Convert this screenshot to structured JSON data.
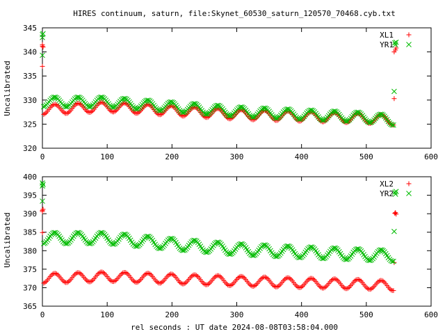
{
  "chart_data": {
    "title": "HIRES continuum, saturn, file:Skynet_60530_saturn_120570_70468.cyb.txt",
    "xlabel": "rel seconds : UT date 2024-08-08T03:58:04.000",
    "panels": [
      {
        "type": "scatter",
        "ylabel": "Uncalibrated",
        "xlim": [
          0,
          600
        ],
        "ylim": [
          320,
          345
        ],
        "xticks": [
          "0",
          "100",
          "200",
          "300",
          "400",
          "500",
          "600"
        ],
        "yticks": [
          "320",
          "325",
          "330",
          "335",
          "340",
          "345"
        ],
        "legend_position": "top-right",
        "series": [
          {
            "name": "XL1",
            "color": "#ff0000",
            "marker": "plus",
            "baseline": [
              [
                0,
                328.0
              ],
              [
                100,
                328.6
              ],
              [
                200,
                327.8
              ],
              [
                300,
                327.0
              ],
              [
                400,
                326.6
              ],
              [
                500,
                326.2
              ],
              [
                540,
                325.8
              ]
            ],
            "amplitude": 1.0,
            "period": 36,
            "x_range": [
              2,
              542
            ],
            "step": 2,
            "outliers": [
              [
                0,
                341.5
              ],
              [
                0,
                341.2
              ],
              [
                0,
                337.0
              ],
              [
                1,
                341.0
              ],
              [
                543,
                330.3
              ],
              [
                543,
                340.0
              ],
              [
                545,
                340.4
              ],
              [
                546,
                340.8
              ]
            ]
          },
          {
            "name": "YR1",
            "color": "#00bb00",
            "marker": "cross",
            "baseline": [
              [
                0,
                329.6
              ],
              [
                100,
                329.6
              ],
              [
                200,
                328.6
              ],
              [
                300,
                327.6
              ],
              [
                400,
                327.0
              ],
              [
                500,
                326.4
              ],
              [
                540,
                325.8
              ]
            ],
            "amplitude": 1.0,
            "period": 36,
            "x_range": [
              2,
              542
            ],
            "step": 2,
            "outliers": [
              [
                0,
                343.6
              ],
              [
                0,
                343.0
              ],
              [
                0,
                339.3
              ],
              [
                1,
                343.8
              ],
              [
                543,
                331.8
              ],
              [
                544,
                341.9
              ],
              [
                545,
                341.5
              ],
              [
                546,
                342.0
              ]
            ]
          }
        ]
      },
      {
        "type": "scatter",
        "ylabel": "Uncalibrated",
        "xlim": [
          0,
          600
        ],
        "ylim": [
          365,
          400
        ],
        "xticks": [
          "0",
          "100",
          "200",
          "300",
          "400",
          "500",
          "600"
        ],
        "yticks": [
          "365",
          "370",
          "375",
          "380",
          "385",
          "390",
          "395",
          "400"
        ],
        "legend_position": "top-right",
        "series": [
          {
            "name": "XL2",
            "color": "#ff0000",
            "marker": "plus",
            "baseline": [
              [
                0,
                372.5
              ],
              [
                100,
                373.0
              ],
              [
                200,
                372.4
              ],
              [
                300,
                371.8
              ],
              [
                400,
                371.3
              ],
              [
                500,
                370.9
              ],
              [
                540,
                370.5
              ]
            ],
            "amplitude": 1.3,
            "period": 36,
            "x_range": [
              2,
              542
            ],
            "step": 2,
            "outliers": [
              [
                0,
                390.6
              ],
              [
                0,
                390.9
              ],
              [
                0,
                384.9
              ],
              [
                1,
                391.2
              ],
              [
                543,
                376.8
              ],
              [
                544,
                390.1
              ],
              [
                545,
                390.3
              ],
              [
                546,
                389.9
              ]
            ]
          },
          {
            "name": "YR2",
            "color": "#00bb00",
            "marker": "cross",
            "baseline": [
              [
                0,
                383.4
              ],
              [
                100,
                383.4
              ],
              [
                200,
                381.8
              ],
              [
                300,
                380.4
              ],
              [
                400,
                379.6
              ],
              [
                500,
                378.9
              ],
              [
                540,
                378.6
              ]
            ],
            "amplitude": 1.5,
            "period": 36,
            "x_range": [
              2,
              542
            ],
            "step": 2,
            "outliers": [
              [
                0,
                397.5
              ],
              [
                0,
                398.3
              ],
              [
                0,
                393.4
              ],
              [
                1,
                397.9
              ],
              [
                543,
                385.2
              ],
              [
                544,
                395.8
              ],
              [
                545,
                395.3
              ],
              [
                546,
                396.0
              ]
            ]
          }
        ]
      }
    ]
  }
}
